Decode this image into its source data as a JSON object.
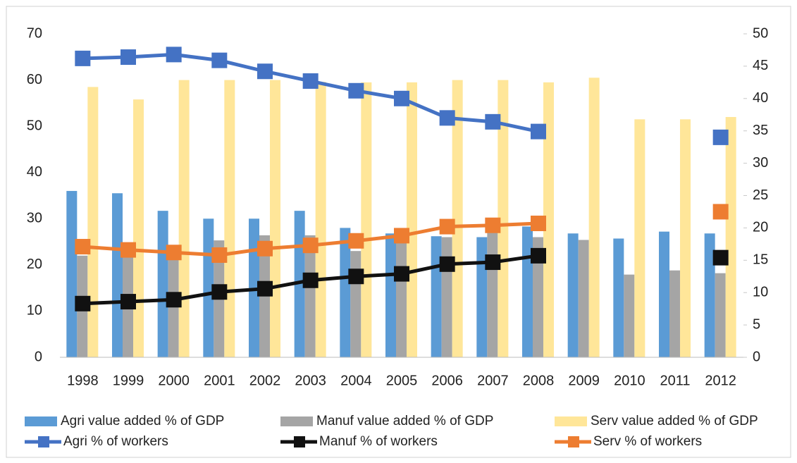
{
  "chart_data": {
    "type": "combo",
    "categories": [
      "1998",
      "1999",
      "2000",
      "2001",
      "2002",
      "2003",
      "2004",
      "2005",
      "2006",
      "2007",
      "2008",
      "2009",
      "2010",
      "2011",
      "2012"
    ],
    "ylim": [
      0,
      70
    ],
    "yticks": [
      0,
      10,
      20,
      30,
      40,
      50,
      60,
      70
    ],
    "y2lim": [
      0,
      50
    ],
    "y2ticks": [
      0,
      5,
      10,
      15,
      20,
      25,
      30,
      35,
      40,
      45,
      50
    ],
    "grid": true,
    "series": [
      {
        "name": "Agri value added % of GDP",
        "type": "bar",
        "color": "#5b9bd5",
        "values": [
          36,
          35.5,
          31.7,
          30,
          30,
          31.7,
          28,
          26.8,
          26.2,
          26,
          28.3,
          26.8,
          25.7,
          27.2,
          26.8
        ]
      },
      {
        "name": "Manuf value added % of GDP",
        "type": "bar",
        "color": "#a5a5a5",
        "values": [
          22,
          22,
          22,
          25.3,
          26.4,
          26.4,
          23,
          25,
          26,
          27,
          26,
          25.4,
          17.9,
          18.8,
          18.2
        ]
      },
      {
        "name": "Serv value added % of GDP",
        "type": "bar",
        "color": "#ffe699",
        "values": [
          58.5,
          55.8,
          60,
          60,
          60,
          59.6,
          59.5,
          59.5,
          60,
          60,
          59.5,
          60.5,
          51.5,
          51.5,
          52
        ]
      },
      {
        "name": "Agri % of workers",
        "type": "line",
        "axis": "y2",
        "color": "#4472c4",
        "values": [
          46.2,
          46.4,
          46.8,
          45.9,
          44.2,
          42.7,
          41.2,
          40,
          37,
          36.4,
          34.9,
          null,
          null,
          null,
          34
        ]
      },
      {
        "name": "Manuf % of workers",
        "type": "line",
        "axis": "y2",
        "color": "#111111",
        "values": [
          8.3,
          8.6,
          8.9,
          10.1,
          10.6,
          11.9,
          12.5,
          12.9,
          14.4,
          14.7,
          15.7,
          null,
          null,
          null,
          15.4
        ]
      },
      {
        "name": "Serv % of workers",
        "type": "line",
        "axis": "y2",
        "color": "#ed7d31",
        "values": [
          17.1,
          16.6,
          16.2,
          15.8,
          16.8,
          17.3,
          18,
          18.8,
          20.2,
          20.4,
          20.7,
          null,
          null,
          null,
          22.5
        ]
      }
    ]
  }
}
